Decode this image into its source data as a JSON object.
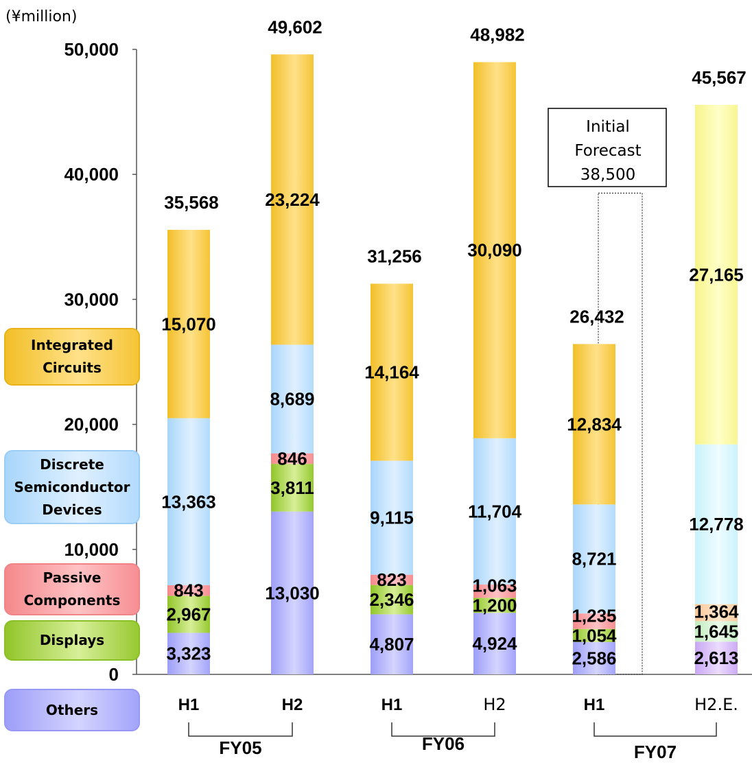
{
  "chart_data": {
    "type": "stacked-bar",
    "unit_label": "(¥million)",
    "ylim": [
      0,
      50000
    ],
    "yticks": [
      "0",
      "10,000",
      "20,000",
      "30,000",
      "40,000",
      "50,000"
    ],
    "ytick_values": [
      0,
      10000,
      20000,
      30000,
      40000,
      50000
    ],
    "categories": [
      "H1",
      "H2",
      "H1",
      "H2",
      "H1",
      "H2.E."
    ],
    "groups": [
      {
        "label": "FY05",
        "from": 0,
        "to": 1
      },
      {
        "label": "FY06",
        "from": 2,
        "to": 3
      },
      {
        "label": "FY07",
        "from": 4,
        "to": 5
      }
    ],
    "series": [
      {
        "name": "Others",
        "values": [
          3323,
          13030,
          4807,
          4924,
          2586,
          2613
        ],
        "labels": [
          "3,323",
          "13,030",
          "4,807",
          "4,924",
          "2,586",
          "2,613"
        ]
      },
      {
        "name": "Displays",
        "values": [
          2967,
          3811,
          2346,
          1200,
          1054,
          1645
        ],
        "labels": [
          "2,967",
          "3,811",
          "2,346",
          "1,200",
          "1,054",
          "1,645"
        ]
      },
      {
        "name": "Passive Components",
        "values": [
          843,
          846,
          823,
          1063,
          1235,
          1364
        ],
        "labels": [
          "843",
          "846",
          "823",
          "1,063",
          "1,235",
          "1,364"
        ]
      },
      {
        "name": "Discrete Semiconductor Devices",
        "values": [
          13363,
          8689,
          9115,
          11704,
          8721,
          12778
        ],
        "labels": [
          "13,363",
          "8,689",
          "9,115",
          "11,704",
          "8,721",
          "12,778"
        ]
      },
      {
        "name": "Integrated Circuits",
        "values": [
          15070,
          23224,
          14164,
          30090,
          12834,
          27165
        ],
        "labels": [
          "15,070",
          "23,224",
          "14,164",
          "30,090",
          "12,834",
          "27,165"
        ]
      }
    ],
    "totals": [
      35568,
      49602,
      31256,
      48982,
      26432,
      45567
    ],
    "total_labels": [
      "35,568",
      "49,602",
      "31,256",
      "48,982",
      "26,432",
      "45,567"
    ],
    "forecast": {
      "lines": [
        "Initial",
        "Forecast",
        "38,500"
      ],
      "value": 38500,
      "category_index": 4
    },
    "colors": {
      "Integrated Circuits": [
        "#f2bf28",
        "#ffe189",
        "#f5c436"
      ],
      "Discrete Semiconductor Devices": [
        "#a9d6fb",
        "#dff0ff",
        "#b3dbfd"
      ],
      "Passive Components": [
        "#f4898c",
        "#ffc2c4",
        "#f68f93"
      ],
      "Displays": [
        "#91c52a",
        "#d7ef98",
        "#97c930"
      ],
      "Others": [
        "#9d9ef8",
        "#d4d4ff",
        "#a3a4fa"
      ],
      "estimate": {
        "Integrated Circuits": [
          "#f6f48a",
          "#ffffc8",
          "#f8f692"
        ],
        "Discrete Semiconductor Devices": [
          "#c8f2fb",
          "#eefcff",
          "#ccf3fb"
        ],
        "Passive Components": [
          "#fbc898",
          "#ffe6cc",
          "#fccc9e"
        ],
        "Displays": [
          "#c2ecc0",
          "#eafbe8",
          "#c6eec4"
        ],
        "Others": [
          "#c8a6f2",
          "#ecdcff",
          "#ccaaf4"
        ]
      }
    }
  },
  "legend": {
    "ic": [
      "Integrated",
      "Circuits"
    ],
    "discrete": [
      "Discrete",
      "Semiconductor",
      "Devices"
    ],
    "passive": [
      "Passive",
      "Components"
    ],
    "displays": [
      "Displays"
    ],
    "others": [
      "Others"
    ]
  }
}
